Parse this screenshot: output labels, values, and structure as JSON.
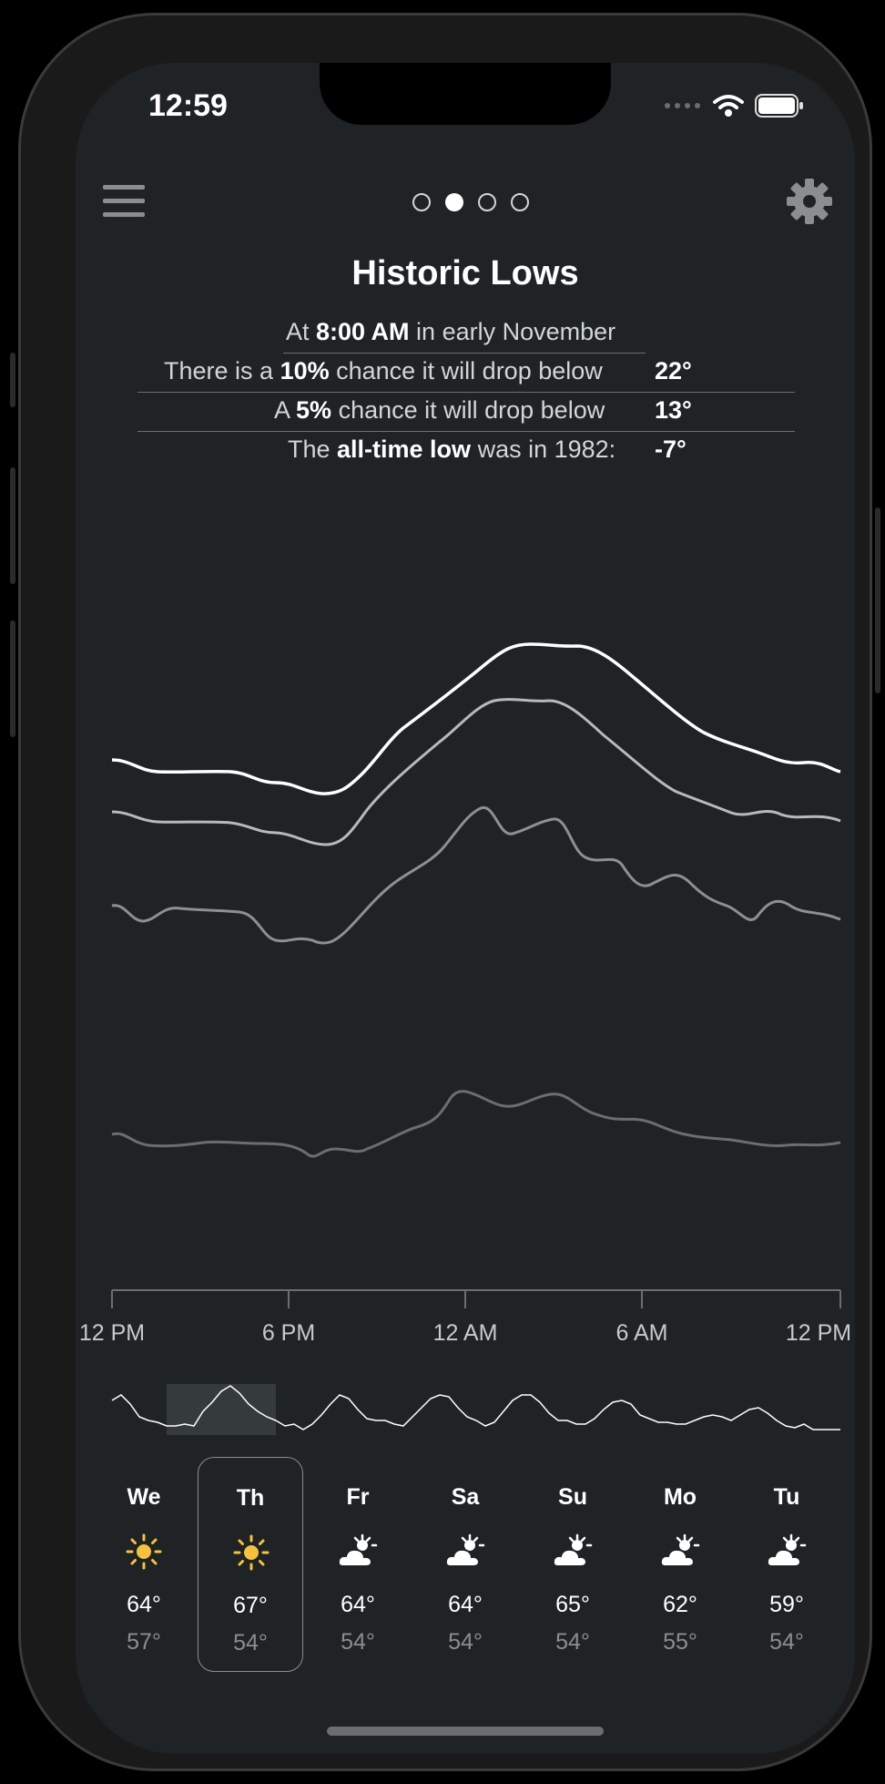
{
  "status_bar": {
    "time": "12:59"
  },
  "header": {
    "page_dots_count": 4,
    "active_dot": 1
  },
  "title": "Historic Lows",
  "info": {
    "row1": {
      "pre": "At ",
      "bold": "8:00 AM",
      "post": " in early November"
    },
    "row2": {
      "pre": "There is a ",
      "bold": "10%",
      "post": " chance it will drop below",
      "value": "22°"
    },
    "row3": {
      "pre": "A ",
      "bold": "5%",
      "post": " chance it will drop below",
      "value": "13°"
    },
    "row4": {
      "pre": "The ",
      "bold": "all-time low",
      "post": " was in 1982:",
      "value": "-7°"
    }
  },
  "chart_data": {
    "type": "line",
    "title": "",
    "xlabel": "",
    "ylabel": "",
    "x_ticks": [
      "12 PM",
      "6 PM",
      "12 AM",
      "6 AM",
      "12 PM"
    ],
    "grid": false
  },
  "forecast": {
    "selected_index": 1,
    "days": [
      {
        "name": "We",
        "icon": "sun-icon",
        "hi": "64°",
        "lo": "57°"
      },
      {
        "name": "Th",
        "icon": "sun-icon",
        "hi": "67°",
        "lo": "54°"
      },
      {
        "name": "Fr",
        "icon": "partly-cloudy-icon",
        "hi": "64°",
        "lo": "54°"
      },
      {
        "name": "Sa",
        "icon": "partly-cloudy-icon",
        "hi": "64°",
        "lo": "54°"
      },
      {
        "name": "Su",
        "icon": "partly-cloudy-icon",
        "hi": "65°",
        "lo": "54°"
      },
      {
        "name": "Mo",
        "icon": "partly-cloudy-icon",
        "hi": "62°",
        "lo": "55°"
      },
      {
        "name": "Tu",
        "icon": "partly-cloudy-icon",
        "hi": "59°",
        "lo": "54°"
      }
    ]
  },
  "colors": {
    "background": "#1f2326",
    "sun": "#f5c33b",
    "muted": "#8a8e91"
  }
}
